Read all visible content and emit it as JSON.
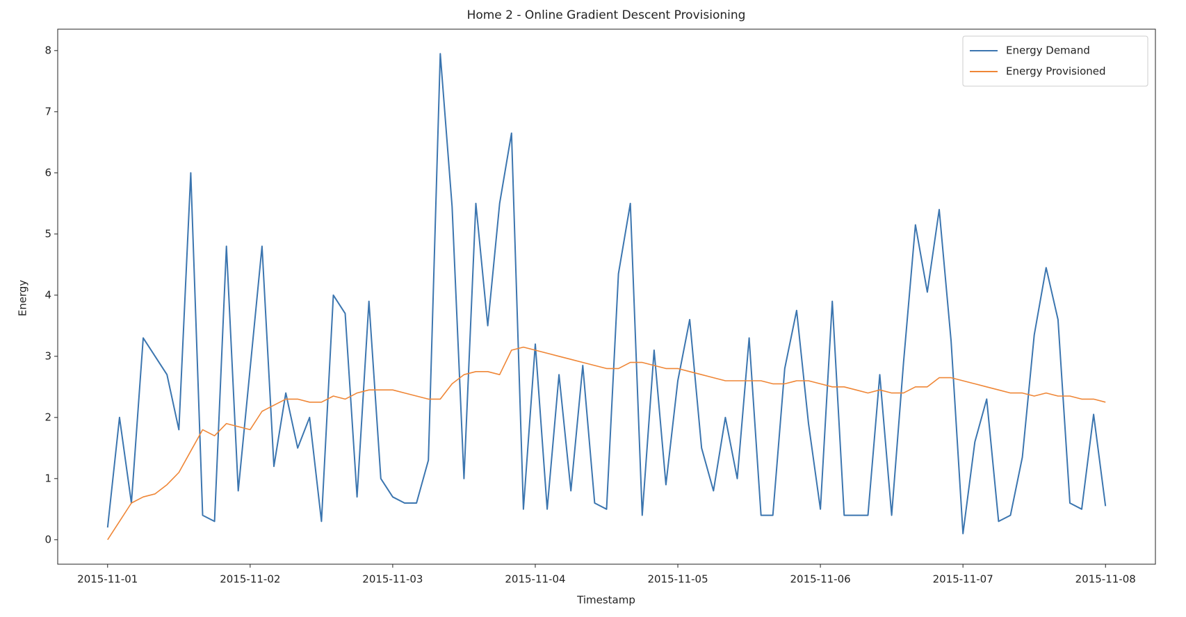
{
  "chart_data": {
    "type": "line",
    "title": "Home 2 - Online Gradient Descent Provisioning",
    "x_label": "Timestamp",
    "y_label": "Energy",
    "x": [
      0,
      2,
      4,
      6,
      8,
      10,
      12,
      14,
      16,
      18,
      20,
      22,
      24,
      26,
      28,
      30,
      32,
      34,
      36,
      38,
      40,
      42,
      44,
      46,
      48,
      50,
      52,
      54,
      56,
      58,
      60,
      62,
      64,
      66,
      68,
      70,
      72,
      74,
      76,
      78,
      80,
      82,
      84,
      86,
      88,
      90,
      92,
      94,
      96,
      98,
      100,
      102,
      104,
      106,
      108,
      110,
      112,
      114,
      116,
      118,
      120,
      122,
      124,
      126,
      128,
      130,
      132,
      134,
      136,
      138,
      140,
      142,
      144,
      146,
      148,
      150,
      152,
      154,
      156,
      158,
      160,
      162,
      164,
      166,
      168
    ],
    "series": [
      {
        "name": "Energy Demand",
        "color": "#3b75af",
        "values": [
          0.2,
          2.0,
          0.6,
          3.3,
          3.0,
          2.7,
          1.8,
          6.0,
          0.4,
          0.3,
          4.8,
          0.8,
          2.8,
          4.8,
          1.2,
          2.4,
          1.5,
          2.0,
          0.3,
          4.0,
          3.7,
          0.7,
          3.9,
          1.0,
          0.7,
          0.6,
          0.6,
          1.3,
          7.95,
          5.45,
          1.0,
          5.5,
          3.5,
          5.5,
          6.65,
          0.5,
          3.2,
          0.5,
          2.7,
          0.8,
          2.85,
          0.6,
          0.5,
          4.35,
          5.5,
          0.4,
          3.1,
          0.9,
          2.6,
          3.6,
          1.5,
          0.8,
          2.0,
          1.0,
          3.3,
          0.4,
          0.4,
          2.8,
          3.75,
          1.9,
          0.5,
          3.9,
          0.4,
          0.4,
          0.4,
          2.7,
          0.4,
          2.9,
          5.15,
          4.05,
          5.4,
          3.25,
          0.1,
          1.6,
          2.3,
          0.3,
          0.4,
          1.35,
          3.35,
          4.45,
          3.6,
          0.6,
          0.5,
          2.05,
          0.55
        ]
      },
      {
        "name": "Energy Provisioned",
        "color": "#ef8636",
        "values": [
          0.0,
          0.3,
          0.6,
          0.7,
          0.75,
          0.9,
          1.1,
          1.45,
          1.8,
          1.7,
          1.9,
          1.85,
          1.8,
          2.1,
          2.2,
          2.3,
          2.3,
          2.25,
          2.25,
          2.35,
          2.3,
          2.4,
          2.45,
          2.45,
          2.45,
          2.4,
          2.35,
          2.3,
          2.3,
          2.55,
          2.7,
          2.75,
          2.75,
          2.7,
          3.1,
          3.15,
          3.1,
          3.05,
          3.0,
          2.95,
          2.9,
          2.85,
          2.8,
          2.8,
          2.9,
          2.9,
          2.85,
          2.8,
          2.8,
          2.75,
          2.7,
          2.65,
          2.6,
          2.6,
          2.6,
          2.6,
          2.55,
          2.55,
          2.6,
          2.6,
          2.55,
          2.5,
          2.5,
          2.45,
          2.4,
          2.45,
          2.4,
          2.4,
          2.5,
          2.5,
          2.65,
          2.65,
          2.6,
          2.55,
          2.5,
          2.45,
          2.4,
          2.4,
          2.35,
          2.4,
          2.35,
          2.35,
          2.3,
          2.3,
          2.25
        ]
      }
    ],
    "xlim": [
      -8.4,
      176.4
    ],
    "xticks": [
      {
        "value": 0,
        "label": "2015-11-01"
      },
      {
        "value": 24,
        "label": "2015-11-02"
      },
      {
        "value": 48,
        "label": "2015-11-03"
      },
      {
        "value": 72,
        "label": "2015-11-04"
      },
      {
        "value": 96,
        "label": "2015-11-05"
      },
      {
        "value": 120,
        "label": "2015-11-06"
      },
      {
        "value": 144,
        "label": "2015-11-07"
      },
      {
        "value": 168,
        "label": "2015-11-08"
      }
    ],
    "ylim": [
      -0.4,
      8.35
    ],
    "yticks": [
      0,
      1,
      2,
      3,
      4,
      5,
      6,
      7,
      8
    ],
    "legend": "upper right",
    "grid": false
  }
}
